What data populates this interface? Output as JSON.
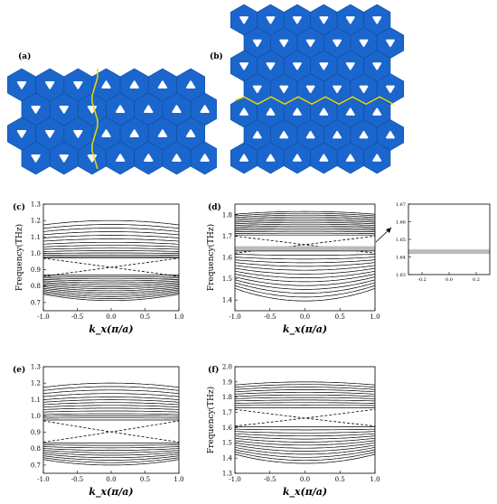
{
  "lattice": {
    "a": {
      "label": "(a)",
      "boundary": "vertical",
      "fill": "#1a66cc",
      "boundary_color": "#f2d600"
    },
    "b": {
      "label": "(b)",
      "boundary": "horizontal",
      "fill": "#1a66cc",
      "boundary_color": "#f2d600"
    }
  },
  "chart_data": [
    {
      "panel": "(c)",
      "type": "line",
      "xlabel": "k_x(π/a)",
      "ylabel": "Frequency(THz)",
      "xlim": [
        -1.0,
        1.0
      ],
      "ylim": [
        0.65,
        1.3
      ],
      "xticks": [
        "-1.0",
        "-0.5",
        "0.0",
        "0.5",
        "1.0"
      ],
      "yticks": [
        "0.7",
        "0.8",
        "0.9",
        "1.0",
        "1.1",
        "1.2",
        "1.3"
      ],
      "upper_bulk": [
        0.972,
        0.982,
        0.994,
        1.008,
        1.024,
        1.042,
        1.062,
        1.084,
        1.108,
        1.134,
        1.16,
        1.186,
        1.212,
        1.24
      ],
      "lower_bulk": [
        0.868,
        0.856,
        0.844,
        0.832,
        0.82,
        0.808,
        0.796,
        0.784,
        0.772,
        0.76,
        0.748,
        0.736,
        0.724,
        0.712
      ],
      "edge_crossing_freq": 0.915,
      "edge_endpoints": [
        0.86,
        0.97
      ],
      "grid": false
    },
    {
      "panel": "(d)",
      "type": "line",
      "xlabel": "k_x(π/a)",
      "ylabel": "Frequency(THz)",
      "xlim": [
        -1.0,
        1.0
      ],
      "ylim": [
        1.35,
        1.85
      ],
      "xticks": [
        "-1.0",
        "-0.5",
        "0.0",
        "0.5",
        "1.0"
      ],
      "yticks": [
        "1.4",
        "1.5",
        "1.6",
        "1.7",
        "1.8"
      ],
      "upper_bulk": [
        1.705,
        1.715,
        1.725,
        1.735,
        1.745,
        1.755,
        1.765,
        1.775,
        1.785,
        1.795,
        1.805,
        1.815,
        1.825,
        1.835
      ],
      "lower_bulk": [
        1.63,
        1.61,
        1.592,
        1.575,
        1.558,
        1.54,
        1.522,
        1.504,
        1.486,
        1.468,
        1.45,
        1.432,
        1.414,
        1.396
      ],
      "edge_crossing_freq": 1.66,
      "edge_endpoints": [
        1.62,
        1.7
      ],
      "flat_band": 1.642,
      "grid": false
    },
    {
      "panel": "(d) inset",
      "type": "line",
      "xlim": [
        -0.3,
        0.3
      ],
      "ylim": [
        1.63,
        1.67
      ],
      "xticks": [
        "-0.2",
        "0.0",
        "0.2"
      ],
      "yticks": [
        "1.63",
        "1.64",
        "1.65",
        "1.66",
        "1.67"
      ],
      "flat_band": 1.643,
      "edge_crossing_freq": 1.654,
      "grid": false
    },
    {
      "panel": "(e)",
      "type": "line",
      "xlabel": "k_x(π/a)",
      "xlim": [
        -1.0,
        1.0
      ],
      "ylim": [
        0.65,
        1.3
      ],
      "xticks": [
        "-1.0",
        "-0.5",
        "0.0",
        "0.5",
        "1.0"
      ],
      "yticks": [
        "0.7",
        "0.8",
        "0.9",
        "1.0",
        "1.1",
        "1.2",
        "1.3"
      ],
      "upper_bulk": [
        0.975,
        0.99,
        1.005,
        1.02,
        1.04,
        1.06,
        1.08,
        1.1,
        1.12,
        1.14,
        1.165,
        1.19,
        1.215,
        1.24
      ],
      "lower_bulk": [
        0.835,
        0.82,
        0.805,
        0.79,
        0.775,
        0.76,
        0.745,
        0.73,
        0.715,
        0.7
      ],
      "edge_crossing_freq": 0.9,
      "edge_endpoints": [
        0.84,
        0.97
      ],
      "grid": false
    },
    {
      "panel": "(f)",
      "type": "line",
      "xlabel": "k_x(π/a)",
      "ylabel": "Frequency(THz)",
      "xlim": [
        -1.0,
        1.0
      ],
      "ylim": [
        1.3,
        2.0
      ],
      "xticks": [
        "-1.0",
        "-0.5",
        "0.0",
        "0.5",
        "1.0"
      ],
      "yticks": [
        "1.3",
        "1.4",
        "1.5",
        "1.6",
        "1.7",
        "1.8",
        "1.9",
        "2.0"
      ],
      "upper_bulk": [
        1.73,
        1.75,
        1.77,
        1.79,
        1.81,
        1.83,
        1.85,
        1.87,
        1.89,
        1.91,
        1.93
      ],
      "lower_bulk": [
        1.605,
        1.585,
        1.565,
        1.545,
        1.525,
        1.505,
        1.485,
        1.465,
        1.445,
        1.425,
        1.405,
        1.385,
        1.365
      ],
      "edge_crossing_freq": 1.66,
      "edge_endpoints": [
        1.61,
        1.72
      ],
      "grid": false
    }
  ]
}
